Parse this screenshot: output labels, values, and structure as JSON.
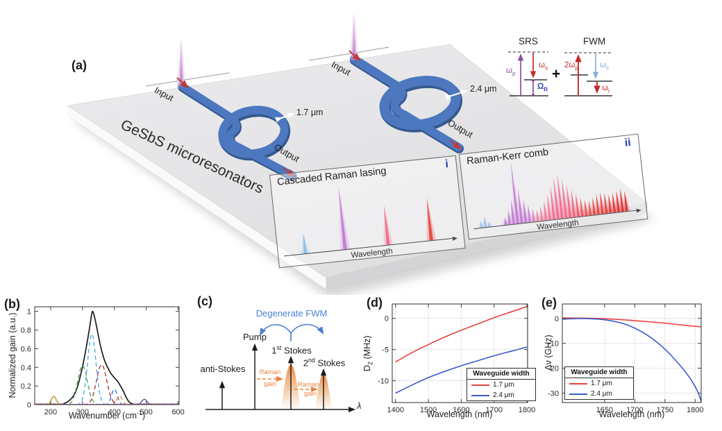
{
  "figure": {
    "panel_labels": {
      "a": "(a)",
      "b": "(b)",
      "c": "(c)",
      "d": "(d)",
      "e": "(e)"
    }
  },
  "panel_a": {
    "chip_label": "GeSbS microresonators",
    "ring1": {
      "input": "Input",
      "output": "Output",
      "width_label": "1.7 μm"
    },
    "ring2": {
      "input": "Input",
      "output": "Output",
      "width_label": "2.4 μm"
    },
    "inset_i": {
      "title": "Cascaded Raman lasing",
      "tag": "i",
      "axis_label": "Wavelength",
      "spikes": [
        {
          "x": 12,
          "h": 26,
          "c": "#8fc0ea"
        },
        {
          "x": 36,
          "h": 80,
          "c": "#c77fd6"
        },
        {
          "x": 62,
          "h": 50,
          "c": "#f0708f"
        },
        {
          "x": 88,
          "h": 54,
          "c": "#e94b42"
        }
      ]
    },
    "inset_ii": {
      "title": "Raman-Kerr comb",
      "tag": "ii",
      "axis_label": "Wavelength",
      "spikes": [
        {
          "x": 4,
          "h": 9,
          "c": "#9cc4ec"
        },
        {
          "x": 6.5,
          "h": 15,
          "c": "#9cc4ec"
        },
        {
          "x": 9,
          "h": 7,
          "c": "#9cc4ec"
        },
        {
          "x": 19,
          "h": 10,
          "c": "#c77fd6"
        },
        {
          "x": 21.5,
          "h": 20,
          "c": "#c77fd6"
        },
        {
          "x": 24,
          "h": 34,
          "c": "#c77fd6"
        },
        {
          "x": 26.5,
          "h": 86,
          "c": "#c77fd6"
        },
        {
          "x": 29,
          "h": 48,
          "c": "#c77fd6"
        },
        {
          "x": 31.5,
          "h": 32,
          "c": "#c77fd6"
        },
        {
          "x": 34,
          "h": 24,
          "c": "#cd84cf"
        },
        {
          "x": 36.5,
          "h": 18,
          "c": "#d88cc0"
        },
        {
          "x": 39,
          "h": 16,
          "c": "#ef86a8"
        },
        {
          "x": 41.5,
          "h": 20,
          "c": "#ef86a8"
        },
        {
          "x": 44,
          "h": 27,
          "c": "#f47d9e"
        },
        {
          "x": 46.5,
          "h": 36,
          "c": "#f47d9e"
        },
        {
          "x": 49,
          "h": 47,
          "c": "#f4749a"
        },
        {
          "x": 51.5,
          "h": 58,
          "c": "#f46e94"
        },
        {
          "x": 54,
          "h": 62,
          "c": "#f46e94"
        },
        {
          "x": 56.5,
          "h": 55,
          "c": "#f46e94"
        },
        {
          "x": 59,
          "h": 46,
          "c": "#f26a86"
        },
        {
          "x": 61.5,
          "h": 38,
          "c": "#f2667e"
        },
        {
          "x": 64,
          "h": 32,
          "c": "#f05f70"
        },
        {
          "x": 66.5,
          "h": 26,
          "c": "#ef5a62"
        },
        {
          "x": 69,
          "h": 22,
          "c": "#ee5454"
        },
        {
          "x": 71.5,
          "h": 20,
          "c": "#ee5050"
        },
        {
          "x": 74,
          "h": 24,
          "c": "#ed4c4c"
        },
        {
          "x": 76.5,
          "h": 28,
          "c": "#ec4848"
        },
        {
          "x": 79,
          "h": 30,
          "c": "#eb4444"
        },
        {
          "x": 81.5,
          "h": 28,
          "c": "#ea4040"
        },
        {
          "x": 84,
          "h": 26,
          "c": "#e93d3d"
        },
        {
          "x": 86.5,
          "h": 28,
          "c": "#e93a3a"
        },
        {
          "x": 89,
          "h": 30,
          "c": "#e83737"
        },
        {
          "x": 91.5,
          "h": 32,
          "c": "#e83434"
        },
        {
          "x": 94,
          "h": 28,
          "c": "#e73030"
        }
      ]
    },
    "energy": {
      "srs_title": "SRS",
      "fwm_title": "FWM",
      "plus": "+",
      "labels": {
        "wp": {
          "base": "ω",
          "sub": "p"
        },
        "ws": {
          "base": "ω",
          "sub": "s"
        },
        "wr": {
          "base": "Ω",
          "sub": "R"
        },
        "twp": {
          "base": "2ω",
          "sub": "p"
        },
        "ws2": {
          "base": "ω",
          "sub": "s"
        },
        "wi": {
          "base": "ω",
          "sub": "i"
        }
      },
      "colors": {
        "pump_purple": "#8a4f9e",
        "stokes_red": "#c22a2a",
        "signal_blue": "#85aede",
        "omega_r_blue": "#3948b8"
      }
    }
  },
  "panel_c": {
    "degenerate_fwm": "Degenerate FWM",
    "pump": "Pump",
    "anti_stokes": "anti-Stokes",
    "stokes1": {
      "num": "1",
      "sup": "st",
      "rest": " Stokes"
    },
    "stokes2": {
      "num": "2",
      "sup": "nd",
      "rest": " Stokes"
    },
    "raman_word": "Raman",
    "gain_word": "gain",
    "lambda": "λ",
    "colors": {
      "fwm_blue": "#4a7fd4",
      "raman_orange": "#e8823c"
    }
  },
  "legend": {
    "title": "Waveguide width",
    "entries": [
      {
        "label": "1.7 μm",
        "color": "#e8413c"
      },
      {
        "label": "2.4 μm",
        "color": "#3c5acc"
      }
    ]
  },
  "chart_data": [
    {
      "id": "b",
      "type": "line",
      "ylabel": "Normalized gain (a.u.)",
      "xlabel_pre": "Wavenumber (cm",
      "xlabel_sup": "-1",
      "xlabel_post": ")",
      "xlim": [
        150,
        603
      ],
      "ylim": [
        0,
        1.05
      ],
      "xticks": [
        200,
        300,
        400,
        500,
        600
      ],
      "yticks": [
        0,
        0.2,
        0.4,
        0.6,
        0.8,
        1
      ],
      "grid": false,
      "legend_position": "none",
      "series": [
        {
          "name": "total-gain",
          "color": "#1a1a1a",
          "style": "solid",
          "width": 1.7,
          "points": [
            [
              150,
              0.004
            ],
            [
              232,
              0.004
            ],
            [
              242,
              0.012
            ],
            [
              252,
              0.028
            ],
            [
              262,
              0.055
            ],
            [
              272,
              0.095
            ],
            [
              282,
              0.17
            ],
            [
              292,
              0.29
            ],
            [
              302,
              0.44
            ],
            [
              312,
              0.62
            ],
            [
              320,
              0.78
            ],
            [
              326,
              0.91
            ],
            [
              331,
              1.0
            ],
            [
              337,
              0.95
            ],
            [
              344,
              0.84
            ],
            [
              352,
              0.7
            ],
            [
              360,
              0.58
            ],
            [
              369,
              0.475
            ],
            [
              378,
              0.405
            ],
            [
              388,
              0.34
            ],
            [
              397,
              0.3
            ],
            [
              405,
              0.27
            ],
            [
              412,
              0.24
            ],
            [
              420,
              0.195
            ],
            [
              428,
              0.145
            ],
            [
              436,
              0.085
            ],
            [
              444,
              0.038
            ],
            [
              452,
              0.014
            ],
            [
              460,
              0.006
            ],
            [
              475,
              0.004
            ],
            [
              600,
              0.004
            ]
          ]
        },
        {
          "name": "component-210",
          "color": "#c09020",
          "style": "solid",
          "width": 1.4,
          "gauss": [
            0.088,
            210,
            7.5
          ]
        },
        {
          "name": "component-300",
          "color": "#5aa85a",
          "style": "dashed",
          "width": 1.4,
          "gauss": [
            0.42,
            300,
            15
          ]
        },
        {
          "name": "component-330",
          "color": "#46b4e8",
          "style": "dashed",
          "width": 1.4,
          "gauss": [
            0.76,
            329,
            13
          ]
        },
        {
          "name": "component-360",
          "color": "#b23a3a",
          "style": "dashed",
          "width": 1.4,
          "gauss": [
            0.43,
            360,
            16
          ]
        },
        {
          "name": "component-400",
          "color": "#3a6fd0",
          "style": "dashed",
          "width": 1.4,
          "gauss": [
            0.165,
            400,
            9
          ]
        },
        {
          "name": "component-416",
          "color": "#e8883a",
          "style": "dashed",
          "width": 1.4,
          "gauss": [
            0.095,
            416,
            8
          ]
        },
        {
          "name": "component-494",
          "color": "#7a4898",
          "style": "solid",
          "width": 1.4,
          "gauss": [
            0.058,
            494,
            8
          ]
        },
        {
          "name": "baseline",
          "color": "#d06ad0",
          "style": "dashed",
          "width": 1.1,
          "points": [
            [
              150,
              0.004
            ],
            [
              600,
              0.004
            ]
          ]
        }
      ]
    },
    {
      "id": "d",
      "type": "line",
      "ylabel_base": "D",
      "ylabel_sub": "2",
      "ylabel_rest": " (MHz)",
      "xlabel": "Wavelength (nm)",
      "xlim": [
        1390,
        1802
      ],
      "ylim": [
        -13.5,
        2.3
      ],
      "xticks": [
        1400,
        1500,
        1600,
        1700,
        1800
      ],
      "yticks": [
        0,
        -5,
        -10
      ],
      "grid": true,
      "legend_position": "lower-right",
      "series": [
        {
          "name": "width-1.7um",
          "color": "#e8413c",
          "style": "solid",
          "width": 1.6,
          "points": [
            [
              1400,
              -7.0
            ],
            [
              1450,
              -5.5
            ],
            [
              1500,
              -4.2
            ],
            [
              1550,
              -3.0
            ],
            [
              1600,
              -1.9
            ],
            [
              1650,
              -0.9
            ],
            [
              1700,
              0.1
            ],
            [
              1750,
              1.0
            ],
            [
              1800,
              1.9
            ]
          ]
        },
        {
          "name": "width-2.4um",
          "color": "#3c5acc",
          "style": "solid",
          "width": 1.6,
          "points": [
            [
              1400,
              -12.0
            ],
            [
              1450,
              -10.7
            ],
            [
              1500,
              -9.5
            ],
            [
              1550,
              -8.5
            ],
            [
              1600,
              -7.6
            ],
            [
              1650,
              -6.8
            ],
            [
              1700,
              -6.0
            ],
            [
              1750,
              -5.3
            ],
            [
              1800,
              -4.6
            ]
          ]
        }
      ]
    },
    {
      "id": "e",
      "type": "line",
      "ylabel": "Δν (GHz)",
      "xlabel": "Wavelength (nm)",
      "xlim": [
        1580,
        1810
      ],
      "ylim": [
        -33.8,
        5.8
      ],
      "xticks": [
        1650,
        1700,
        1750,
        1800
      ],
      "yticks": [
        0,
        -10,
        -20,
        -30
      ],
      "grid": true,
      "legend_position": "lower-left",
      "series": [
        {
          "name": "width-1.7um",
          "color": "#e8413c",
          "style": "solid",
          "width": 1.6,
          "points": [
            [
              1580,
              0.2
            ],
            [
              1620,
              0.1
            ],
            [
              1650,
              -0.1
            ],
            [
              1700,
              -0.9
            ],
            [
              1750,
              -1.9
            ],
            [
              1780,
              -2.7
            ],
            [
              1810,
              -3.4
            ]
          ]
        },
        {
          "name": "width-2.4um",
          "color": "#3c5acc",
          "style": "solid",
          "width": 1.6,
          "points": [
            [
              1580,
              -0.3
            ],
            [
              1610,
              -0.05
            ],
            [
              1640,
              -0.3
            ],
            [
              1660,
              -0.9
            ],
            [
              1680,
              -2.0
            ],
            [
              1700,
              -3.9
            ],
            [
              1720,
              -6.6
            ],
            [
              1740,
              -10.2
            ],
            [
              1760,
              -14.8
            ],
            [
              1780,
              -20.3
            ],
            [
              1795,
              -25.3
            ],
            [
              1805,
              -29.8
            ],
            [
              1810,
              -33.5
            ]
          ]
        }
      ]
    }
  ]
}
